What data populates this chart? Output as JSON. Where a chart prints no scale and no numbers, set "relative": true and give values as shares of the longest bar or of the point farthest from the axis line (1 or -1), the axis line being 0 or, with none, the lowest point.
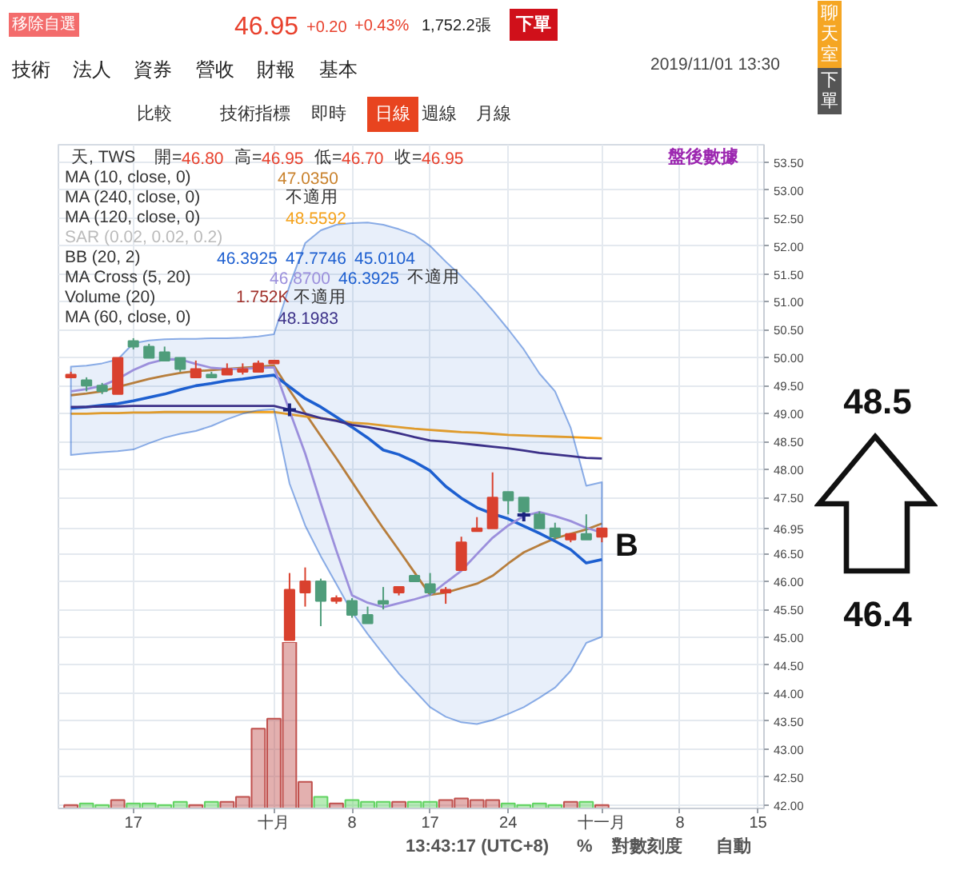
{
  "chart_data": [
    {
      "type": "candlestick",
      "categories": [
        null,
        null,
        null,
        null,
        "17",
        null,
        null,
        null,
        null,
        null,
        null,
        null,
        null,
        "十月",
        null,
        null,
        null,
        null,
        "8",
        null,
        null,
        null,
        null,
        "17",
        null,
        null,
        null,
        null,
        "24",
        null,
        null,
        null,
        null,
        null,
        "十一月",
        null,
        null,
        null,
        null,
        "8",
        null,
        null,
        null,
        null,
        "15"
      ],
      "ohlc": [
        [
          49.65,
          49.75,
          49.65,
          49.7
        ],
        [
          49.6,
          49.65,
          49.4,
          49.5
        ],
        [
          49.5,
          49.55,
          49.35,
          49.4
        ],
        [
          49.35,
          50.0,
          49.35,
          50.0
        ],
        [
          50.3,
          50.35,
          50.15,
          50.2
        ],
        [
          50.2,
          50.25,
          50.0,
          50.0
        ],
        [
          50.1,
          50.2,
          49.95,
          49.95
        ],
        [
          50.0,
          50.0,
          49.75,
          49.8
        ],
        [
          49.65,
          49.95,
          49.65,
          49.8
        ],
        [
          49.7,
          49.75,
          49.65,
          49.65
        ],
        [
          49.7,
          49.9,
          49.7,
          49.8
        ],
        [
          49.75,
          49.9,
          49.7,
          49.8
        ],
        [
          49.75,
          49.95,
          49.75,
          49.9
        ],
        [
          49.9,
          49.95,
          49.9,
          49.95
        ],
        [
          44.95,
          46.15,
          44.95,
          45.85
        ],
        [
          45.8,
          46.25,
          45.55,
          46.0
        ],
        [
          46.0,
          46.05,
          45.2,
          45.65
        ],
        [
          45.65,
          45.75,
          45.6,
          45.7
        ],
        [
          45.65,
          45.7,
          45.35,
          45.4
        ],
        [
          45.4,
          45.55,
          45.25,
          45.25
        ],
        [
          45.65,
          45.9,
          45.5,
          45.6
        ],
        [
          45.8,
          45.9,
          45.75,
          45.9
        ],
        [
          46.1,
          46.1,
          46.0,
          46.0
        ],
        [
          45.95,
          46.15,
          45.75,
          45.8
        ],
        [
          45.8,
          45.9,
          45.6,
          45.85
        ],
        [
          46.2,
          46.8,
          46.2,
          46.7
        ],
        [
          46.9,
          47.15,
          46.9,
          46.95
        ],
        [
          46.95,
          47.95,
          46.95,
          47.5
        ],
        [
          47.6,
          47.6,
          47.2,
          47.45
        ],
        [
          47.5,
          47.5,
          47.25,
          47.25
        ],
        [
          47.2,
          47.25,
          46.95,
          46.95
        ],
        [
          46.95,
          47.05,
          46.75,
          46.8
        ],
        [
          46.75,
          46.85,
          46.7,
          46.85
        ],
        [
          46.85,
          47.2,
          46.75,
          46.75
        ],
        [
          46.8,
          46.95,
          46.7,
          46.95
        ],
        null,
        null,
        null,
        null,
        null,
        null,
        null,
        null,
        null,
        null
      ],
      "colors": [
        "#d9412e",
        "#4f9d7b",
        "#4f9d7b",
        "#d9412e",
        "#4f9d7b",
        "#4f9d7b",
        "#4f9d7b",
        "#4f9d7b",
        "#d9412e",
        "#4f9d7b",
        "#d9412e",
        "#d9412e",
        "#d9412e",
        "#d9412e",
        "#d9412e",
        "#d9412e",
        "#4f9d7b",
        "#d9412e",
        "#4f9d7b",
        "#4f9d7b",
        "#4f9d7b",
        "#d9412e",
        "#4f9d7b",
        "#4f9d7b",
        "#d9412e",
        "#d9412e",
        "#d9412e",
        "#d9412e",
        "#4f9d7b",
        "#4f9d7b",
        "#4f9d7b",
        "#4f9d7b",
        "#d9412e",
        "#4f9d7b",
        "#d9412e",
        null,
        null,
        null,
        null,
        null,
        null,
        null,
        null,
        null,
        null
      ],
      "series": [
        {
          "type": "line",
          "color": "#c9822d",
          "values": [
            49.33,
            49.36,
            49.4,
            49.48,
            49.55,
            49.62,
            49.68,
            49.73,
            49.76,
            49.78,
            49.8,
            49.82,
            49.84,
            49.86,
            49.42,
            49.01,
            48.6,
            48.2,
            47.78,
            47.36,
            46.95,
            46.56,
            46.16,
            45.76,
            45.8,
            45.88,
            45.96,
            46.1,
            46.32,
            46.52,
            46.65,
            46.77,
            46.85,
            46.93,
            47.035,
            null,
            null,
            null,
            null,
            null,
            null,
            null,
            null,
            null,
            null
          ]
        },
        {
          "type": "line",
          "color": "#f5a21b",
          "values": [
            49.0,
            49.0,
            49.01,
            49.01,
            49.02,
            49.02,
            49.03,
            49.03,
            49.03,
            49.03,
            49.03,
            49.03,
            49.03,
            49.03,
            48.99,
            48.95,
            48.92,
            48.88,
            48.84,
            48.82,
            48.79,
            48.76,
            48.73,
            48.71,
            48.69,
            48.67,
            48.66,
            48.64,
            48.62,
            48.61,
            48.6,
            48.59,
            48.58,
            48.57,
            48.5592,
            null,
            null,
            null,
            null,
            null,
            null,
            null,
            null,
            null,
            null
          ]
        },
        {
          "type": "line",
          "color": "#1d5fd0",
          "values": [
            49.1,
            49.12,
            49.15,
            49.18,
            49.23,
            49.29,
            49.35,
            49.43,
            49.5,
            49.54,
            49.59,
            49.62,
            49.66,
            49.69,
            49.48,
            49.27,
            49.12,
            48.94,
            48.76,
            48.57,
            48.35,
            48.27,
            48.14,
            47.98,
            47.7,
            47.49,
            47.32,
            47.21,
            47.12,
            46.99,
            46.86,
            46.72,
            46.57,
            46.33,
            46.3925,
            null,
            null,
            null,
            null,
            null,
            null,
            null,
            null,
            null,
            null
          ],
          "upper": [
            49.84,
            49.86,
            49.9,
            49.97,
            50.26,
            50.31,
            50.33,
            50.34,
            50.34,
            50.35,
            50.35,
            50.36,
            50.38,
            50.42,
            51.29,
            52.05,
            52.28,
            52.38,
            52.41,
            52.42,
            52.38,
            52.3,
            52.2,
            52.0,
            51.72,
            51.46,
            51.17,
            50.85,
            50.51,
            50.15,
            49.72,
            49.4,
            48.75,
            47.71,
            47.7746,
            null,
            null,
            null,
            null,
            null,
            null,
            null,
            null,
            null,
            null
          ],
          "lower": [
            48.26,
            48.29,
            48.31,
            48.33,
            48.36,
            48.47,
            48.57,
            48.64,
            48.69,
            48.78,
            48.9,
            49.0,
            49.06,
            49.08,
            47.75,
            47.0,
            46.45,
            45.95,
            45.45,
            45.06,
            44.7,
            44.35,
            44.05,
            43.75,
            43.58,
            43.48,
            43.45,
            43.52,
            43.63,
            43.75,
            43.92,
            44.1,
            44.4,
            44.9,
            45.0104,
            null,
            null,
            null,
            null,
            null,
            null,
            null,
            null,
            null,
            null
          ]
        },
        {
          "type": "line",
          "color": "#9b8fdc",
          "values": [
            49.4,
            49.44,
            49.5,
            49.62,
            49.78,
            49.9,
            49.97,
            49.97,
            49.89,
            49.82,
            49.8,
            49.8,
            49.82,
            49.83,
            49.05,
            48.29,
            47.4,
            46.55,
            45.75,
            45.62,
            45.54,
            45.61,
            45.68,
            45.76,
            45.98,
            46.19,
            46.49,
            46.78,
            47.0,
            47.17,
            47.24,
            47.17,
            47.08,
            46.96,
            46.87,
            null,
            null,
            null,
            null,
            null,
            null,
            null,
            null,
            null,
            null
          ]
        },
        {
          "type": "line",
          "color": "#3b3088",
          "values": [
            49.12,
            49.12,
            49.13,
            49.13,
            49.14,
            49.14,
            49.14,
            49.14,
            49.14,
            49.14,
            49.14,
            49.14,
            49.14,
            49.14,
            49.07,
            49.0,
            48.92,
            48.87,
            48.8,
            48.76,
            48.71,
            48.65,
            48.58,
            48.52,
            48.5,
            48.47,
            48.44,
            48.41,
            48.38,
            48.34,
            48.3,
            48.27,
            48.24,
            48.21,
            48.1983,
            null,
            null,
            null,
            null,
            null,
            null,
            null,
            null,
            null,
            null
          ]
        },
        {
          "type": "scatter",
          "marker": "cross",
          "color": "#1a237e",
          "values": [
            null,
            null,
            null,
            null,
            null,
            null,
            null,
            null,
            null,
            null,
            null,
            null,
            null,
            null,
            49.07,
            null,
            null,
            null,
            null,
            null,
            null,
            null,
            null,
            null,
            null,
            null,
            null,
            null,
            null,
            47.19,
            null,
            null,
            null,
            null,
            null,
            null,
            null,
            null,
            null,
            null,
            null,
            null,
            null,
            null,
            null
          ]
        }
      ],
      "ylim": [
        41.94,
        53.81
      ],
      "yticks": [
        {
          "value": 42,
          "label": "42.00"
        },
        {
          "value": 42.5,
          "label": "42.50"
        },
        {
          "value": 43,
          "label": "43.00"
        },
        {
          "value": 43.5,
          "label": "43.50"
        },
        {
          "value": 44,
          "label": "44.00"
        },
        {
          "value": 44.5,
          "label": "44.50"
        },
        {
          "value": 45,
          "label": "45.00"
        },
        {
          "value": 45.5,
          "label": "45.50"
        },
        {
          "value": 46,
          "label": "46.00"
        },
        {
          "value": 46.5,
          "label": "46.50"
        },
        46.95,
        {
          "value": 47.5,
          "label": "47.50"
        },
        {
          "value": 48,
          "label": "48.00"
        },
        {
          "value": 48.5,
          "label": "48.50"
        },
        {
          "value": 49,
          "label": "49.00"
        },
        {
          "value": 49.5,
          "label": "49.50"
        },
        {
          "value": 50,
          "label": "50.00"
        },
        {
          "value": 50.5,
          "label": "50.50"
        },
        {
          "value": 51,
          "label": "51.00"
        },
        {
          "value": 51.5,
          "label": "51.50"
        },
        {
          "value": 52,
          "label": "52.00"
        },
        {
          "value": 52.5,
          "label": "52.50"
        },
        {
          "value": 53,
          "label": "53.00"
        },
        {
          "value": 53.5,
          "label": "53.50"
        }
      ],
      "grid": true,
      "annotations": [
        "移除自選",
        "46.95",
        "+0.20",
        "+0.43%",
        "1,752.2張",
        "下單",
        "技術",
        "法人",
        "資券",
        "營收",
        "財報",
        "基本",
        "2019/11/01 13:30",
        "比較",
        "技術指標",
        "即時",
        "日線",
        "週線",
        "月線",
        "聊天室",
        "下單",
        "天, TWS",
        "開=",
        "46.80",
        "高=",
        "46.95",
        "低=",
        "46.70",
        "收=",
        "46.95",
        "MA (10, close, 0)",
        "47.0350",
        "MA (240, close, 0)",
        "不適用",
        "MA (120, close, 0)",
        "48.5592",
        "SAR (0.02, 0.02, 0.2)",
        "BB (20, 2)",
        "46.3925",
        "47.7746",
        "45.0104",
        "MA Cross (5, 20)",
        "46.8700",
        "46.3925",
        "不適用",
        "Volume (20)",
        "1.752K",
        "不適用",
        "MA (60, close, 0)",
        "48.1983",
        "盤後數據",
        "B",
        "48.5",
        "46.4",
        "13:43:17 (UTC+8)",
        "%",
        "對數刻度",
        "自動"
      ]
    },
    {
      "type": "bar",
      "relative": true,
      "categories": [
        null,
        null,
        null,
        null,
        null,
        null,
        null,
        null,
        null,
        null,
        null,
        null,
        null,
        null,
        null,
        null,
        null,
        null,
        null,
        null,
        null,
        null,
        null,
        null,
        null,
        null,
        null,
        null,
        null,
        null,
        null,
        null,
        null,
        null,
        null,
        null,
        null,
        null,
        null,
        null,
        null,
        null,
        null,
        null,
        null
      ],
      "values": [
        0.02,
        0.03,
        0.02,
        0.05,
        0.03,
        0.03,
        0.02,
        0.04,
        0.02,
        0.04,
        0.04,
        0.07,
        0.48,
        0.54,
        1,
        0.16,
        0.07,
        0.03,
        0.05,
        0.04,
        0.04,
        0.04,
        0.04,
        0.04,
        0.05,
        0.06,
        0.05,
        0.05,
        0.03,
        0.02,
        0.03,
        0.02,
        0.04,
        0.04,
        0.02,
        null,
        null,
        null,
        null,
        null,
        null,
        null,
        null,
        null,
        null
      ],
      "colors": [
        "#c0504d",
        "#5fd35f",
        "#5fd35f",
        "#c0504d",
        "#5fd35f",
        "#5fd35f",
        "#5fd35f",
        "#5fd35f",
        "#c0504d",
        "#5fd35f",
        "#c0504d",
        "#c0504d",
        "#c0504d",
        "#c0504d",
        "#c0504d",
        "#c0504d",
        "#5fd35f",
        "#c0504d",
        "#5fd35f",
        "#5fd35f",
        "#5fd35f",
        "#c0504d",
        "#5fd35f",
        "#5fd35f",
        "#c0504d",
        "#c0504d",
        "#c0504d",
        "#c0504d",
        "#5fd35f",
        "#5fd35f",
        "#5fd35f",
        "#5fd35f",
        "#c0504d",
        "#5fd35f",
        "#c0504d",
        null,
        null,
        null,
        null,
        null,
        null,
        null,
        null,
        null,
        null
      ]
    }
  ]
}
